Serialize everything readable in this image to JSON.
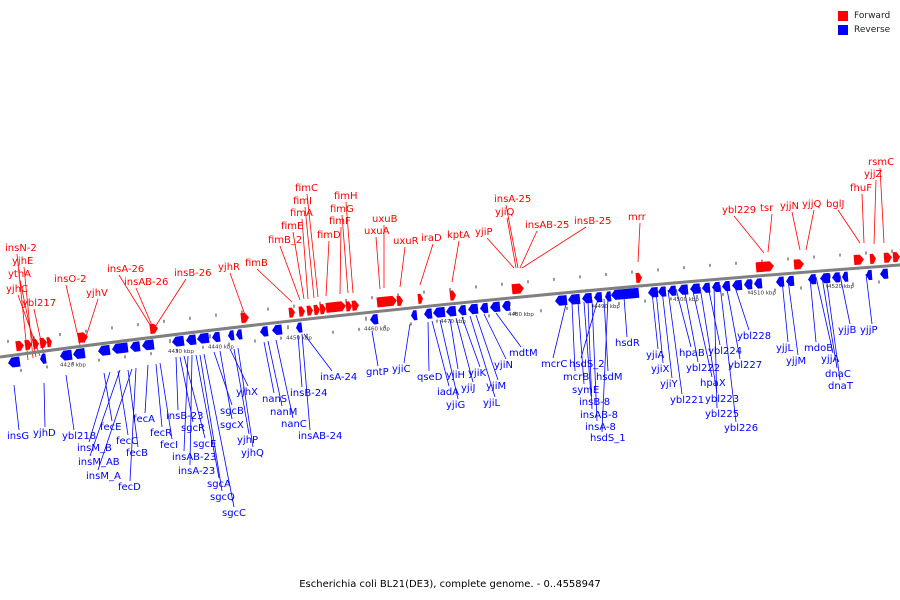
{
  "legend": {
    "forward_label": "Forward",
    "reverse_label": "Reverse",
    "forward_color": "#ff0000",
    "reverse_color": "#0000ff"
  },
  "caption": "Escherichia coli BL21(DE3), complete genome. - 0..4558947",
  "axis_ticks": [
    "4420 kbp",
    "4430 kbp",
    "4440 kbp",
    "4450 kbp",
    "4460 kbp",
    "4470 kbp",
    "4480 kbp",
    "4490 kbp",
    "4500 kbp",
    "4510 kbp",
    "4520 kbp"
  ],
  "forward_genes": [
    "insN-2",
    "yjhE",
    "ythA",
    "yjhC",
    "ybl217",
    "insO-2",
    "yjhV",
    "insA-26",
    "insAB-26",
    "insB-26",
    "yjhR",
    "fimB",
    "fimB_2",
    "fimE",
    "fimA",
    "fimI",
    "fimC",
    "fimD",
    "fimF",
    "fimG",
    "fimH",
    "uxuA",
    "uxuB",
    "uxuR",
    "iraD",
    "kptA",
    "yjiP",
    "yjiQ",
    "insA-25",
    "insAB-25",
    "insB-25",
    "mrr",
    "ybl229",
    "tsr",
    "yjjN",
    "yjjQ",
    "bglJ",
    "fhuF",
    "yjjZ",
    "rsmC"
  ],
  "reverse_genes": [
    "insG",
    "yjhD",
    "ybl218",
    "fecE",
    "insM_B",
    "fecC",
    "insM_AB",
    "fecB",
    "insM_A",
    "fecD",
    "fecA",
    "fecR",
    "fecI",
    "insB-23",
    "sgcR",
    "sgcE",
    "insAB-23",
    "insA-23",
    "sgcA",
    "sgcQ",
    "sgcC",
    "sgcB",
    "sgcX",
    "yjhX",
    "yjhP",
    "yjhQ",
    "nanS",
    "nanM",
    "nanC",
    "insB-24",
    "insAB-24",
    "insA-24",
    "gntP",
    "yjiC",
    "qseD",
    "iadA",
    "yjiG",
    "yjiH",
    "yjiJ",
    "yjiK",
    "yjiL",
    "yjiM",
    "yjiN",
    "mdtM",
    "mcrC",
    "mcrB",
    "symE",
    "insB-8",
    "insAB-8",
    "insA-8",
    "hsdS_2",
    "hsdM",
    "hsdS_1",
    "hsdR",
    "yjiA",
    "yjiX",
    "yjiY",
    "ybl221",
    "hpaB",
    "ybl222",
    "hpaX",
    "ybl223",
    "ybl224",
    "ybl225",
    "ybl226",
    "ybl227",
    "ybl228",
    "yjjL",
    "yjjM",
    "mdoB",
    "yjjA",
    "dnaC",
    "dnaT",
    "yjjB",
    "yjjP"
  ]
}
